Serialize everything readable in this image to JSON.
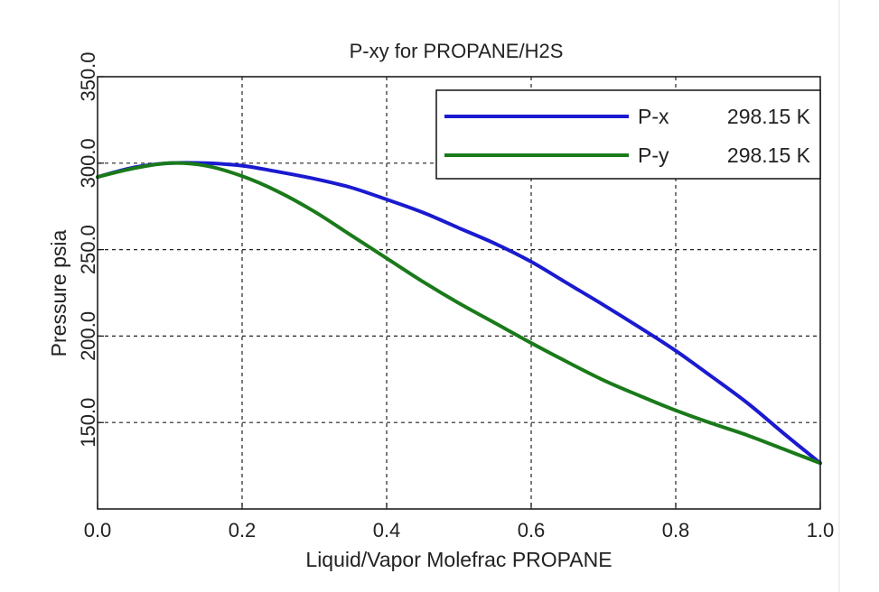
{
  "chart_data": {
    "type": "line",
    "title": "P-xy for PROPANE/H2S",
    "xlabel": "Liquid/Vapor Molefrac PROPANE",
    "ylabel": "Pressure psia",
    "xlim": [
      0.0,
      1.0
    ],
    "ylim": [
      100.0,
      350.0
    ],
    "x_ticks": [
      "0.0",
      "0.2",
      "0.4",
      "0.6",
      "0.8",
      "1.0"
    ],
    "y_ticks": [
      "150.0",
      "200.0",
      "250.0",
      "300.0",
      "350.0"
    ],
    "grid": true,
    "legend_position": "top-right",
    "series": [
      {
        "name": "P-x",
        "legend_value": "298.15 K",
        "color": "#1a1ad0",
        "points": [
          [
            0.0,
            292.0
          ],
          [
            0.05,
            297.5
          ],
          [
            0.1,
            300.0
          ],
          [
            0.15,
            300.0
          ],
          [
            0.2,
            298.5
          ],
          [
            0.25,
            295.0
          ],
          [
            0.3,
            291.0
          ],
          [
            0.35,
            286.0
          ],
          [
            0.4,
            279.0
          ],
          [
            0.45,
            271.5
          ],
          [
            0.5,
            262.5
          ],
          [
            0.55,
            253.5
          ],
          [
            0.6,
            243.0
          ],
          [
            0.65,
            230.5
          ],
          [
            0.7,
            218.0
          ],
          [
            0.75,
            205.0
          ],
          [
            0.8,
            191.5
          ],
          [
            0.85,
            176.5
          ],
          [
            0.9,
            161.0
          ],
          [
            0.95,
            143.5
          ],
          [
            1.0,
            126.5
          ]
        ]
      },
      {
        "name": "P-y",
        "legend_value": "298.15 K",
        "color": "#1a7a1a",
        "points": [
          [
            0.0,
            292.0
          ],
          [
            0.05,
            297.0
          ],
          [
            0.1,
            300.0
          ],
          [
            0.15,
            298.5
          ],
          [
            0.2,
            292.5
          ],
          [
            0.25,
            283.5
          ],
          [
            0.3,
            272.0
          ],
          [
            0.35,
            258.5
          ],
          [
            0.4,
            245.0
          ],
          [
            0.45,
            231.5
          ],
          [
            0.5,
            219.0
          ],
          [
            0.55,
            207.5
          ],
          [
            0.6,
            196.0
          ],
          [
            0.65,
            185.0
          ],
          [
            0.7,
            174.5
          ],
          [
            0.75,
            165.5
          ],
          [
            0.8,
            157.0
          ],
          [
            0.85,
            149.5
          ],
          [
            0.9,
            142.5
          ],
          [
            0.95,
            134.5
          ],
          [
            1.0,
            126.5
          ]
        ]
      }
    ]
  }
}
